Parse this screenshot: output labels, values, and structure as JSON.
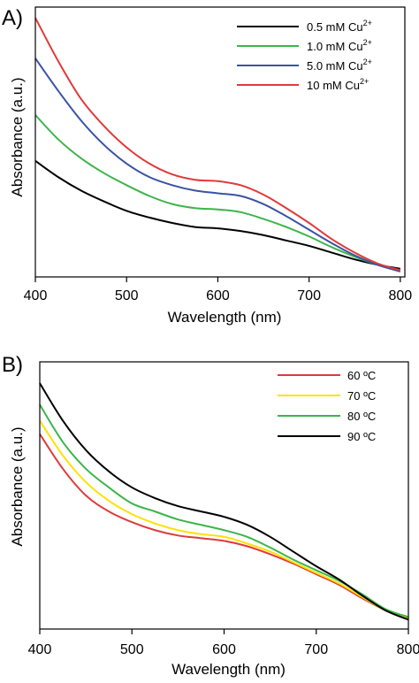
{
  "chart_data": [
    {
      "type": "line",
      "panel_label": "A)",
      "xlabel": "Wavelength (nm)",
      "ylabel": "Absorbance (a.u.)",
      "xlim": [
        400,
        805
      ],
      "ylim": [
        0,
        1
      ],
      "xticks": [
        "400",
        "500",
        "600",
        "700",
        "800"
      ],
      "x": [
        400,
        425,
        450,
        475,
        500,
        525,
        550,
        575,
        600,
        625,
        650,
        675,
        700,
        725,
        750,
        775,
        800
      ],
      "legend_position": "top-right",
      "series": [
        {
          "name": "0.5 mM Cu",
          "name_sup": "2+",
          "color": "#000000",
          "values": [
            0.43,
            0.37,
            0.32,
            0.28,
            0.245,
            0.22,
            0.2,
            0.185,
            0.18,
            0.17,
            0.155,
            0.135,
            0.115,
            0.09,
            0.065,
            0.045,
            0.03
          ]
        },
        {
          "name": "1.0 mM Cu",
          "name_sup": "2+",
          "color": "#3cb54a",
          "values": [
            0.6,
            0.51,
            0.44,
            0.385,
            0.34,
            0.3,
            0.27,
            0.255,
            0.25,
            0.24,
            0.215,
            0.185,
            0.15,
            0.11,
            0.075,
            0.045,
            0.025
          ]
        },
        {
          "name": "5.0 mM Cu",
          "name_sup": "2+",
          "color": "#3953a4",
          "values": [
            0.81,
            0.69,
            0.58,
            0.49,
            0.42,
            0.37,
            0.34,
            0.32,
            0.31,
            0.3,
            0.27,
            0.225,
            0.175,
            0.125,
            0.08,
            0.045,
            0.02
          ]
        },
        {
          "name": "10 mM Cu",
          "name_sup": "2+",
          "color": "#e03a3a",
          "values": [
            0.96,
            0.8,
            0.66,
            0.56,
            0.48,
            0.42,
            0.38,
            0.36,
            0.355,
            0.34,
            0.305,
            0.255,
            0.2,
            0.14,
            0.09,
            0.05,
            0.025
          ]
        }
      ]
    },
    {
      "type": "line",
      "panel_label": "B)",
      "xlabel": "Wavelength (nm)",
      "ylabel": "Absorbance (a.u.)",
      "xlim": [
        400,
        800
      ],
      "ylim": [
        0,
        1
      ],
      "xticks": [
        "400",
        "500",
        "600",
        "700",
        "800"
      ],
      "x": [
        400,
        425,
        450,
        475,
        500,
        525,
        550,
        575,
        600,
        625,
        650,
        675,
        700,
        725,
        750,
        775,
        800
      ],
      "legend_position": "top-right",
      "series": [
        {
          "name": "60 ºC",
          "color": "#e03a3a",
          "values": [
            0.73,
            0.6,
            0.5,
            0.44,
            0.4,
            0.37,
            0.35,
            0.34,
            0.33,
            0.31,
            0.28,
            0.245,
            0.205,
            0.165,
            0.115,
            0.07,
            0.035
          ]
        },
        {
          "name": "70 ºC",
          "color": "#ffe100",
          "values": [
            0.78,
            0.65,
            0.55,
            0.48,
            0.43,
            0.395,
            0.37,
            0.355,
            0.345,
            0.32,
            0.29,
            0.25,
            0.21,
            0.17,
            0.12,
            0.07,
            0.04
          ]
        },
        {
          "name": "80 ºC",
          "color": "#3cb54a",
          "values": [
            0.84,
            0.7,
            0.6,
            0.53,
            0.47,
            0.44,
            0.41,
            0.39,
            0.37,
            0.345,
            0.305,
            0.26,
            0.22,
            0.18,
            0.13,
            0.075,
            0.045
          ]
        },
        {
          "name": "90 ºC",
          "color": "#000000",
          "values": [
            0.92,
            0.78,
            0.67,
            0.59,
            0.53,
            0.49,
            0.46,
            0.44,
            0.42,
            0.39,
            0.345,
            0.29,
            0.235,
            0.185,
            0.125,
            0.07,
            0.035
          ]
        }
      ]
    }
  ]
}
